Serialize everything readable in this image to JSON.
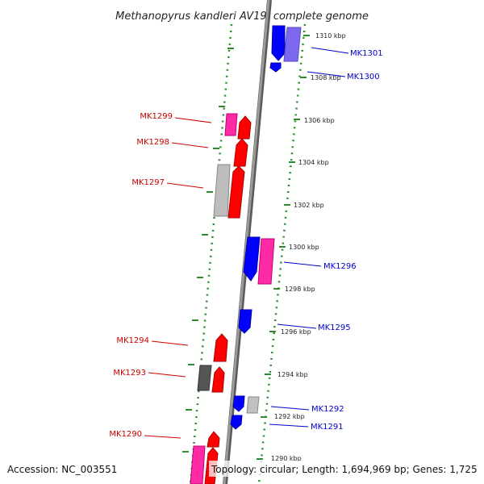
{
  "title": "Methanopyrus kandleri AV19, complete genome",
  "footer": {
    "accession": "Accession: NC_003551",
    "topology": "Topology: circular; Length: 1,694,969 bp; Genes: 1,725"
  },
  "colors": {
    "forward_gene": "#ff0000",
    "reverse_gene": "#0000ff",
    "pink_feature": "#ff2aa6",
    "gray_feature": "#b0b0b0",
    "dark_gray_feature": "#555555",
    "purple_feature": "#7b68ee",
    "forward_label": "#cc0000",
    "reverse_label": "#0000cc",
    "backbone": "#8a8a8a",
    "ruler": "#2e8b2e"
  },
  "ticks": [
    {
      "label": "1310 kbp"
    },
    {
      "label": "1308 kbp"
    },
    {
      "label": "1306 kbp"
    },
    {
      "label": "1304 kbp"
    },
    {
      "label": "1302 kbp"
    },
    {
      "label": "1300 kbp"
    },
    {
      "label": "1298 kbp"
    },
    {
      "label": "1296 kbp"
    },
    {
      "label": "1294 kbp"
    },
    {
      "label": "1292 kbp"
    },
    {
      "label": "1290 kbp"
    }
  ],
  "gene_labels": [
    {
      "name": "MK1301",
      "strand": "reverse"
    },
    {
      "name": "MK1300",
      "strand": "reverse"
    },
    {
      "name": "MK1299",
      "strand": "forward"
    },
    {
      "name": "MK1298",
      "strand": "forward"
    },
    {
      "name": "MK1297",
      "strand": "forward"
    },
    {
      "name": "MK1296",
      "strand": "reverse"
    },
    {
      "name": "MK1295",
      "strand": "reverse"
    },
    {
      "name": "MK1294",
      "strand": "forward"
    },
    {
      "name": "MK1293",
      "strand": "forward"
    },
    {
      "name": "MK1292",
      "strand": "reverse"
    },
    {
      "name": "MK1291",
      "strand": "reverse"
    },
    {
      "name": "MK1290",
      "strand": "forward"
    }
  ]
}
